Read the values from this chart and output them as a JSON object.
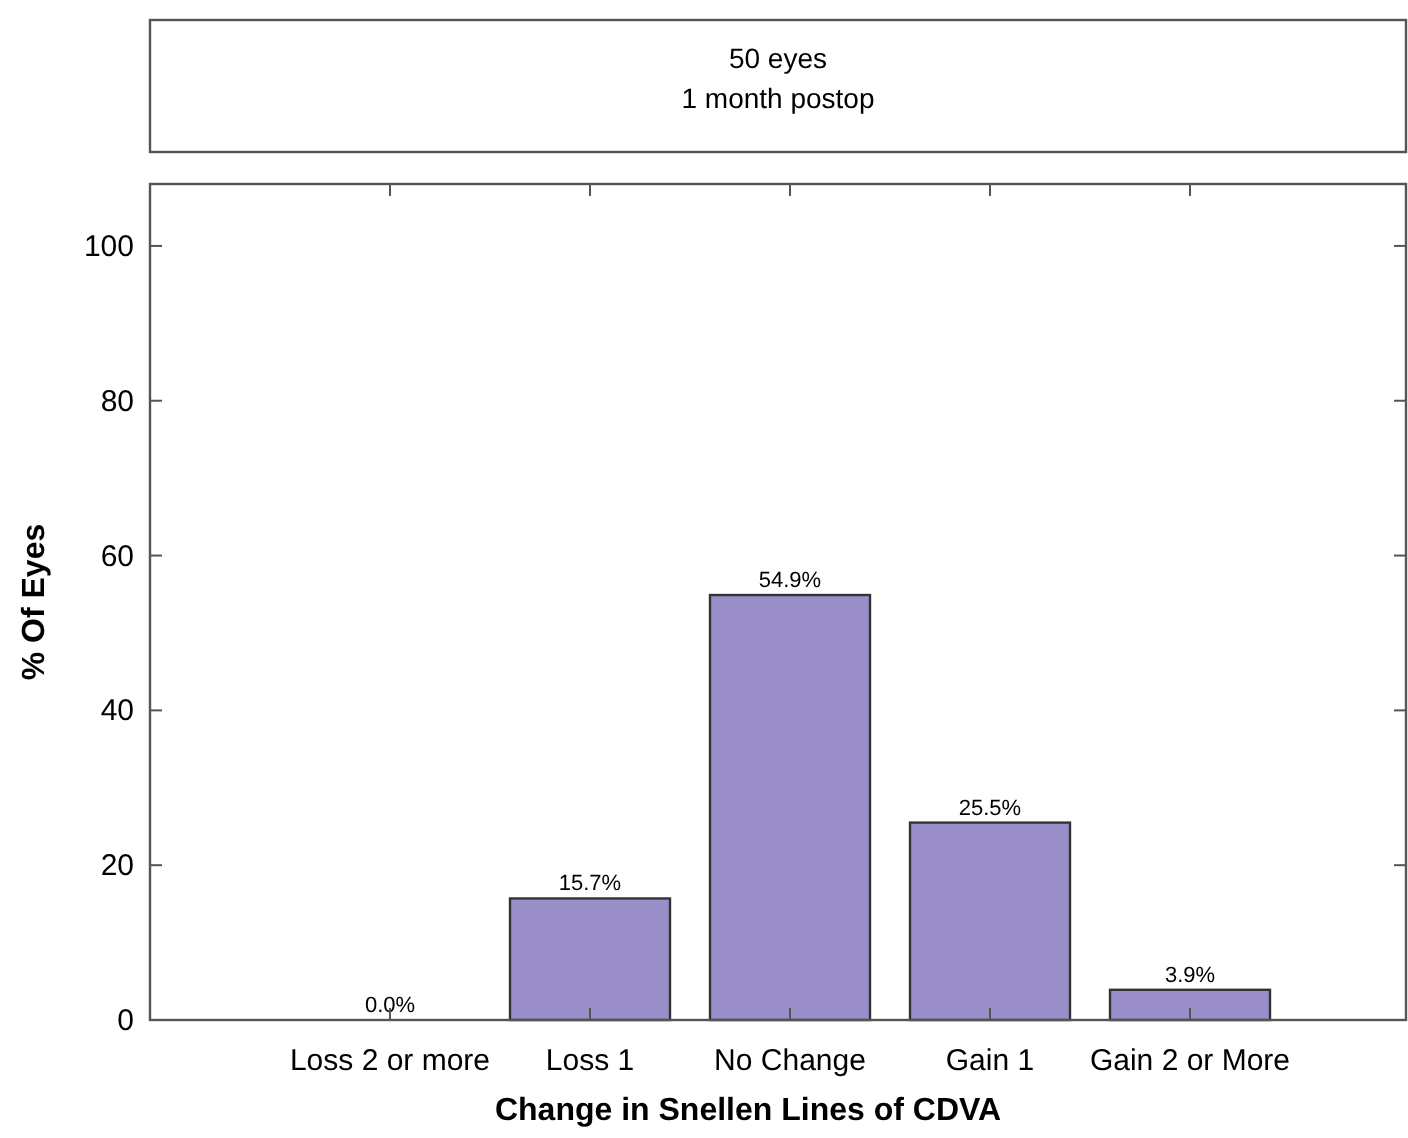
{
  "chart_data": {
    "type": "bar",
    "title": "50 eyes\n1 month postop",
    "xlabel": "Change in Snellen Lines of CDVA",
    "ylabel": "% Of Eyes",
    "categories": [
      "Loss 2 or more",
      "Loss 1",
      "No Change",
      "Gain 1",
      "Gain 2 or More"
    ],
    "values": [
      0.0,
      15.7,
      54.9,
      25.5,
      3.9
    ],
    "value_labels": [
      "0.0%",
      "15.7%",
      "54.9%",
      "25.5%",
      "3.9%"
    ],
    "color": "#9b8fc9",
    "ylim": [
      0,
      108
    ],
    "yticks": [
      0,
      20,
      40,
      60,
      80,
      100
    ],
    "grid": false
  }
}
